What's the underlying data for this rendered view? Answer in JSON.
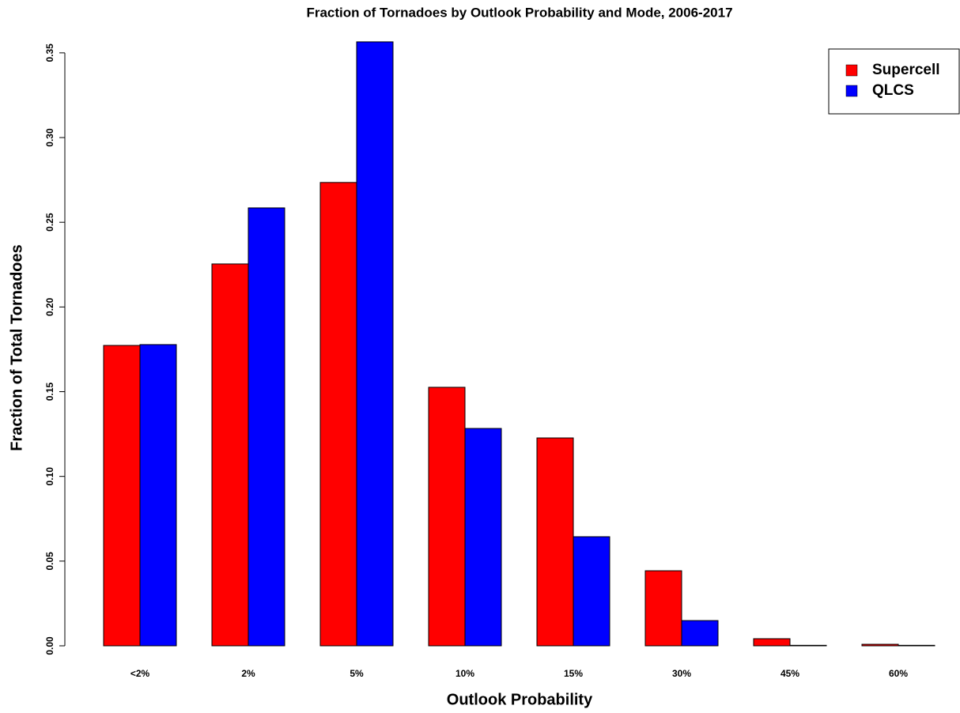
{
  "chart_data": {
    "type": "bar",
    "title": "Fraction of Tornadoes by Outlook Probability and Mode, 2006-2017",
    "x_label": "Outlook Probability",
    "y_label": "Fraction of Total Tornadoes",
    "categories": [
      "<2%",
      "2%",
      "5%",
      "10%",
      "15%",
      "30%",
      "45%",
      "60%"
    ],
    "series": [
      {
        "name": "Supercell",
        "color": "#ff0000",
        "values": [
          0.1773,
          0.2254,
          0.2735,
          0.1526,
          0.1227,
          0.0443,
          0.0042,
          0.0009
        ]
      },
      {
        "name": "QLCS",
        "color": "#0000ff",
        "values": [
          0.1778,
          0.2585,
          0.3565,
          0.1283,
          0.0644,
          0.0149,
          0.0003,
          0.0003
        ]
      }
    ],
    "ylim": [
      0,
      0.37
    ],
    "yticks": [
      {
        "value": 0,
        "label": "0.00"
      },
      0.05,
      {
        "value": 0.1,
        "label": "0.10"
      },
      0.15,
      {
        "value": 0.2,
        "label": "0.20"
      },
      0.25,
      {
        "value": 0.3,
        "label": "0.30"
      },
      0.35
    ],
    "legend": "top-right"
  }
}
